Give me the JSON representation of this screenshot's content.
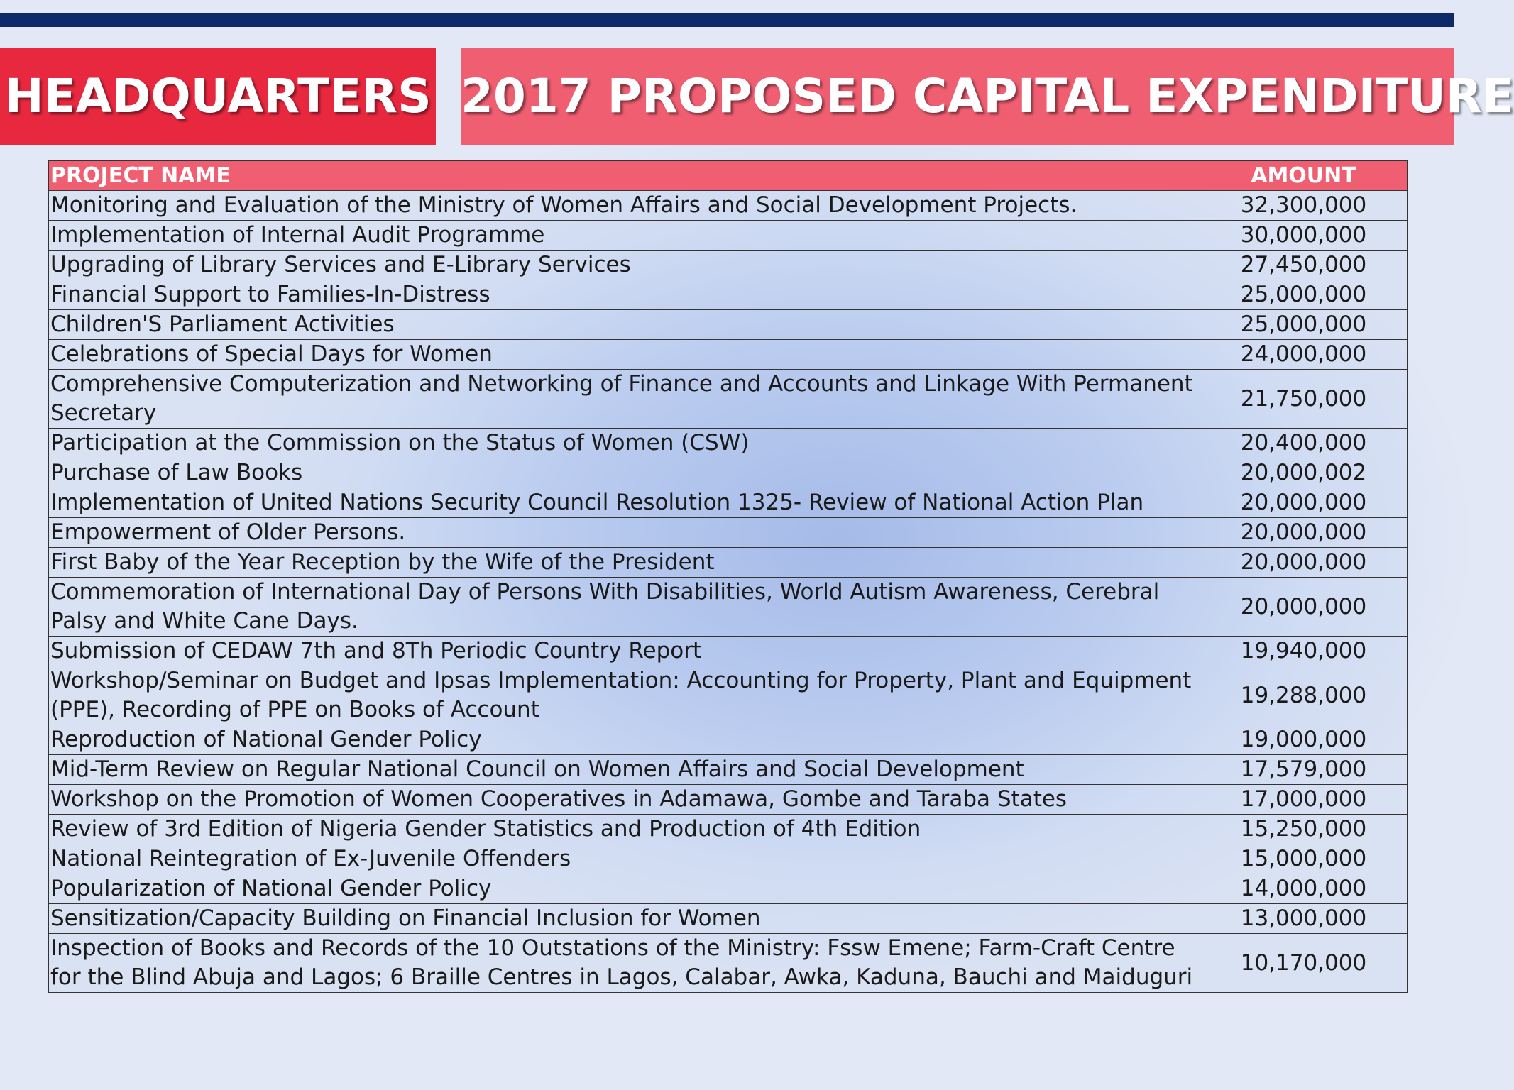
{
  "banner": {
    "left_title": "HEADQUARTERS",
    "right_title": "2017 PROPOSED CAPITAL EXPENDITURE",
    "left_color": "#e8283f",
    "right_color": "#ef5e71"
  },
  "top_bar_color": "#0f2a6b",
  "table": {
    "headers": {
      "name": "PROJECT NAME",
      "amount": "AMOUNT"
    },
    "rows": [
      {
        "name": "Monitoring and Evaluation of the Ministry of Women Affairs and Social Development Projects.",
        "amount": "32,300,000"
      },
      {
        "name": "Implementation of Internal Audit Programme",
        "amount": "30,000,000"
      },
      {
        "name": "Upgrading of Library Services and E-Library Services",
        "amount": "27,450,000"
      },
      {
        "name": "Financial Support to Families-In-Distress",
        "amount": "25,000,000"
      },
      {
        "name": "Children'S Parliament Activities",
        "amount": "25,000,000"
      },
      {
        "name": "Celebrations of Special Days for Women",
        "amount": "24,000,000"
      },
      {
        "name": "Comprehensive Computerization and Networking of Finance and Accounts and Linkage With Permanent Secretary",
        "amount": "21,750,000"
      },
      {
        "name": "Participation at the Commission on the Status of Women (CSW)",
        "amount": "20,400,000"
      },
      {
        "name": "Purchase of Law Books",
        "amount": "20,000,002"
      },
      {
        "name": "Implementation of United Nations Security Council Resolution 1325- Review of National Action Plan",
        "amount": "20,000,000"
      },
      {
        "name": "Empowerment of Older Persons.",
        "amount": "20,000,000"
      },
      {
        "name": "First Baby of the Year Reception by the Wife of the President",
        "amount": "20,000,000"
      },
      {
        "name": "Commemoration of International Day of Persons With Disabilities, World Autism Awareness, Cerebral Palsy and White Cane Days.",
        "amount": "20,000,000"
      },
      {
        "name": "Submission of CEDAW 7th and 8Th Periodic Country Report",
        "amount": "19,940,000"
      },
      {
        "name": "Workshop/Seminar on Budget and Ipsas Implementation: Accounting for Property, Plant and Equipment (PPE), Recording of PPE on Books of Account",
        "amount": "19,288,000"
      },
      {
        "name": "Reproduction of National Gender Policy",
        "amount": "19,000,000"
      },
      {
        "name": "Mid-Term Review on Regular National Council on Women Affairs and Social Development",
        "amount": "17,579,000"
      },
      {
        "name": "Workshop on the Promotion of Women Cooperatives in Adamawa, Gombe and Taraba States",
        "amount": "17,000,000"
      },
      {
        "name": "Review of 3rd Edition of Nigeria Gender Statistics and Production of 4th Edition",
        "amount": "15,250,000"
      },
      {
        "name": "National Reintegration of Ex-Juvenile Offenders",
        "amount": "15,000,000"
      },
      {
        "name": "Popularization of National Gender Policy",
        "amount": "14,000,000"
      },
      {
        "name": "Sensitization/Capacity Building on Financial Inclusion for Women",
        "amount": "13,000,000"
      },
      {
        "name": "Inspection of Books and Records of the 10 Outstations of the Ministry: Fssw Emene; Farm-Craft Centre for the Blind Abuja and Lagos; 6 Braille Centres in Lagos, Calabar, Awka, Kaduna, Bauchi and Maiduguri",
        "amount": "10,170,000"
      }
    ]
  }
}
